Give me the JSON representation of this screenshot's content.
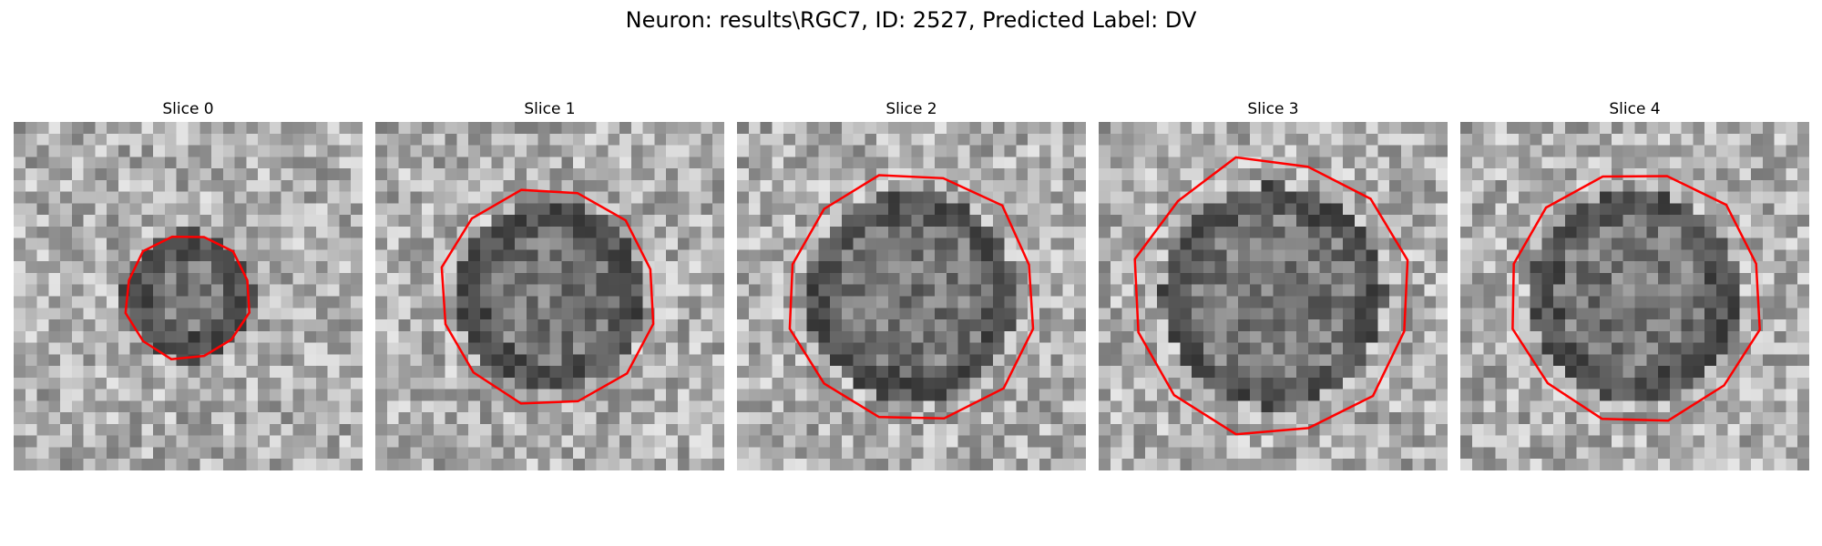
{
  "figure": {
    "title": "Neuron: results\\RGC7, ID: 2527, Predicted Label: DV"
  },
  "panels": [
    {
      "title": "Slice 0",
      "contour_scale": 0.36,
      "dark_radius": 0.3
    },
    {
      "title": "Slice 1",
      "contour_scale": 0.62,
      "dark_radius": 0.45
    },
    {
      "title": "Slice 2",
      "contour_scale": 0.72,
      "dark_radius": 0.52
    },
    {
      "title": "Slice 3",
      "contour_scale": 0.8,
      "dark_radius": 0.56
    },
    {
      "title": "Slice 4",
      "contour_scale": 0.72,
      "dark_radius": 0.52
    }
  ],
  "colors": {
    "contour": "#ff0000"
  }
}
